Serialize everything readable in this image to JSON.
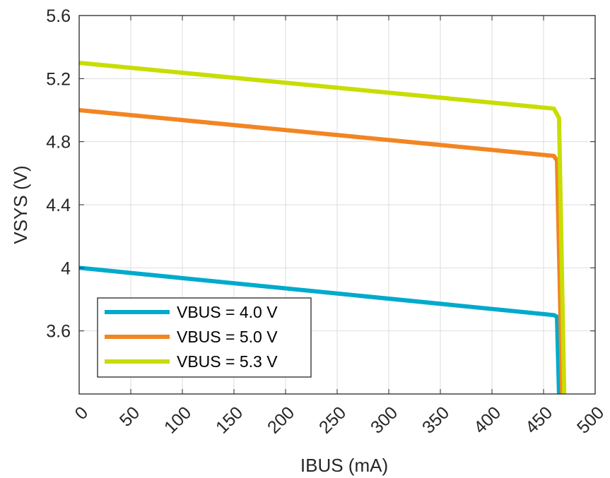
{
  "chart_data": {
    "type": "line",
    "xlabel": "IBUS (mA)",
    "ylabel": "VSYS (V)",
    "xlim": [
      0,
      500
    ],
    "ylim": [
      3.2,
      5.6
    ],
    "xticks": [
      0,
      50,
      100,
      150,
      200,
      250,
      300,
      350,
      400,
      450,
      500
    ],
    "xtick_labels": [
      "0",
      "50",
      "100",
      "150",
      "200",
      "250",
      "300",
      "350",
      "400",
      "450",
      "500"
    ],
    "yticks": [
      3.6,
      4.0,
      4.4,
      4.8,
      5.2,
      5.6
    ],
    "ytick_labels": [
      "3.6",
      "4",
      "4.4",
      "4.8",
      "5.2",
      "5.6"
    ],
    "grid": true,
    "legend_position": "bottom-left",
    "series": [
      {
        "name": "VBUS = 4.0 V",
        "color": "#00AACC",
        "x": [
          0,
          460,
          463,
          465
        ],
        "y": [
          4.0,
          3.7,
          3.69,
          3.2
        ]
      },
      {
        "name": "VBUS = 5.0 V",
        "color": "#F28522",
        "x": [
          0,
          460,
          463,
          468
        ],
        "y": [
          5.0,
          4.71,
          4.68,
          3.2
        ]
      },
      {
        "name": "VBUS = 5.3 V",
        "color": "#C8DD00",
        "x": [
          0,
          460,
          465,
          470
        ],
        "y": [
          5.3,
          5.01,
          4.95,
          3.2
        ]
      }
    ]
  }
}
